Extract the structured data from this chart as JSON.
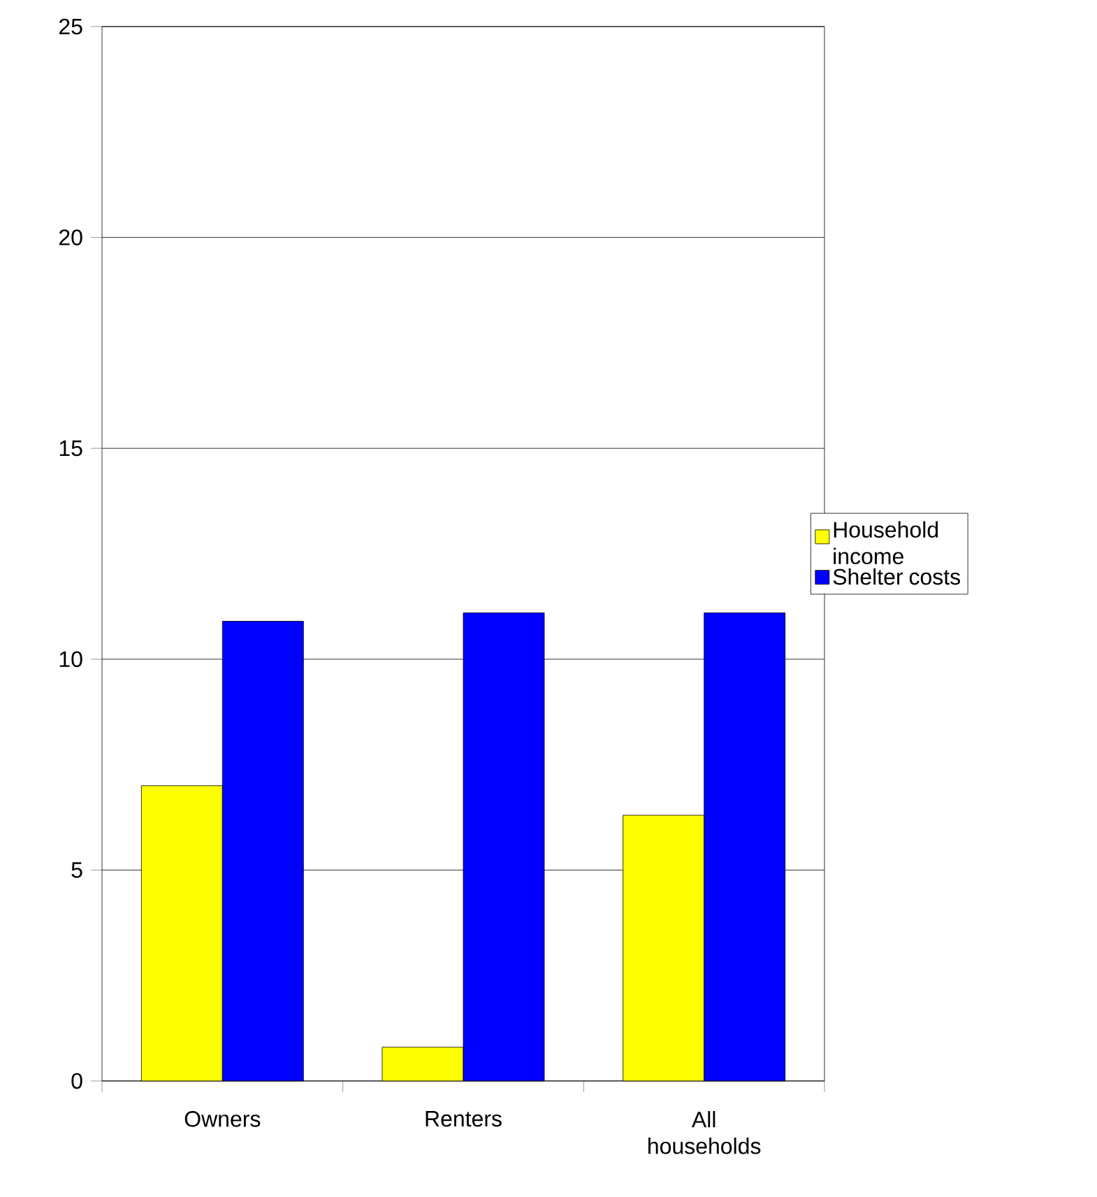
{
  "chart_data": {
    "type": "bar",
    "categories": [
      "Owners",
      "Renters",
      "All households"
    ],
    "series": [
      {
        "name": "Household income",
        "color": "#ffff00",
        "values": [
          7.0,
          0.8,
          6.3
        ]
      },
      {
        "name": "Shelter costs",
        "color": "#0000ff",
        "values": [
          10.9,
          11.1,
          11.1
        ]
      }
    ],
    "ylim": [
      0,
      25
    ],
    "yticks": [
      0,
      5,
      10,
      15,
      20,
      25
    ],
    "grid": "y",
    "legend": "right"
  }
}
